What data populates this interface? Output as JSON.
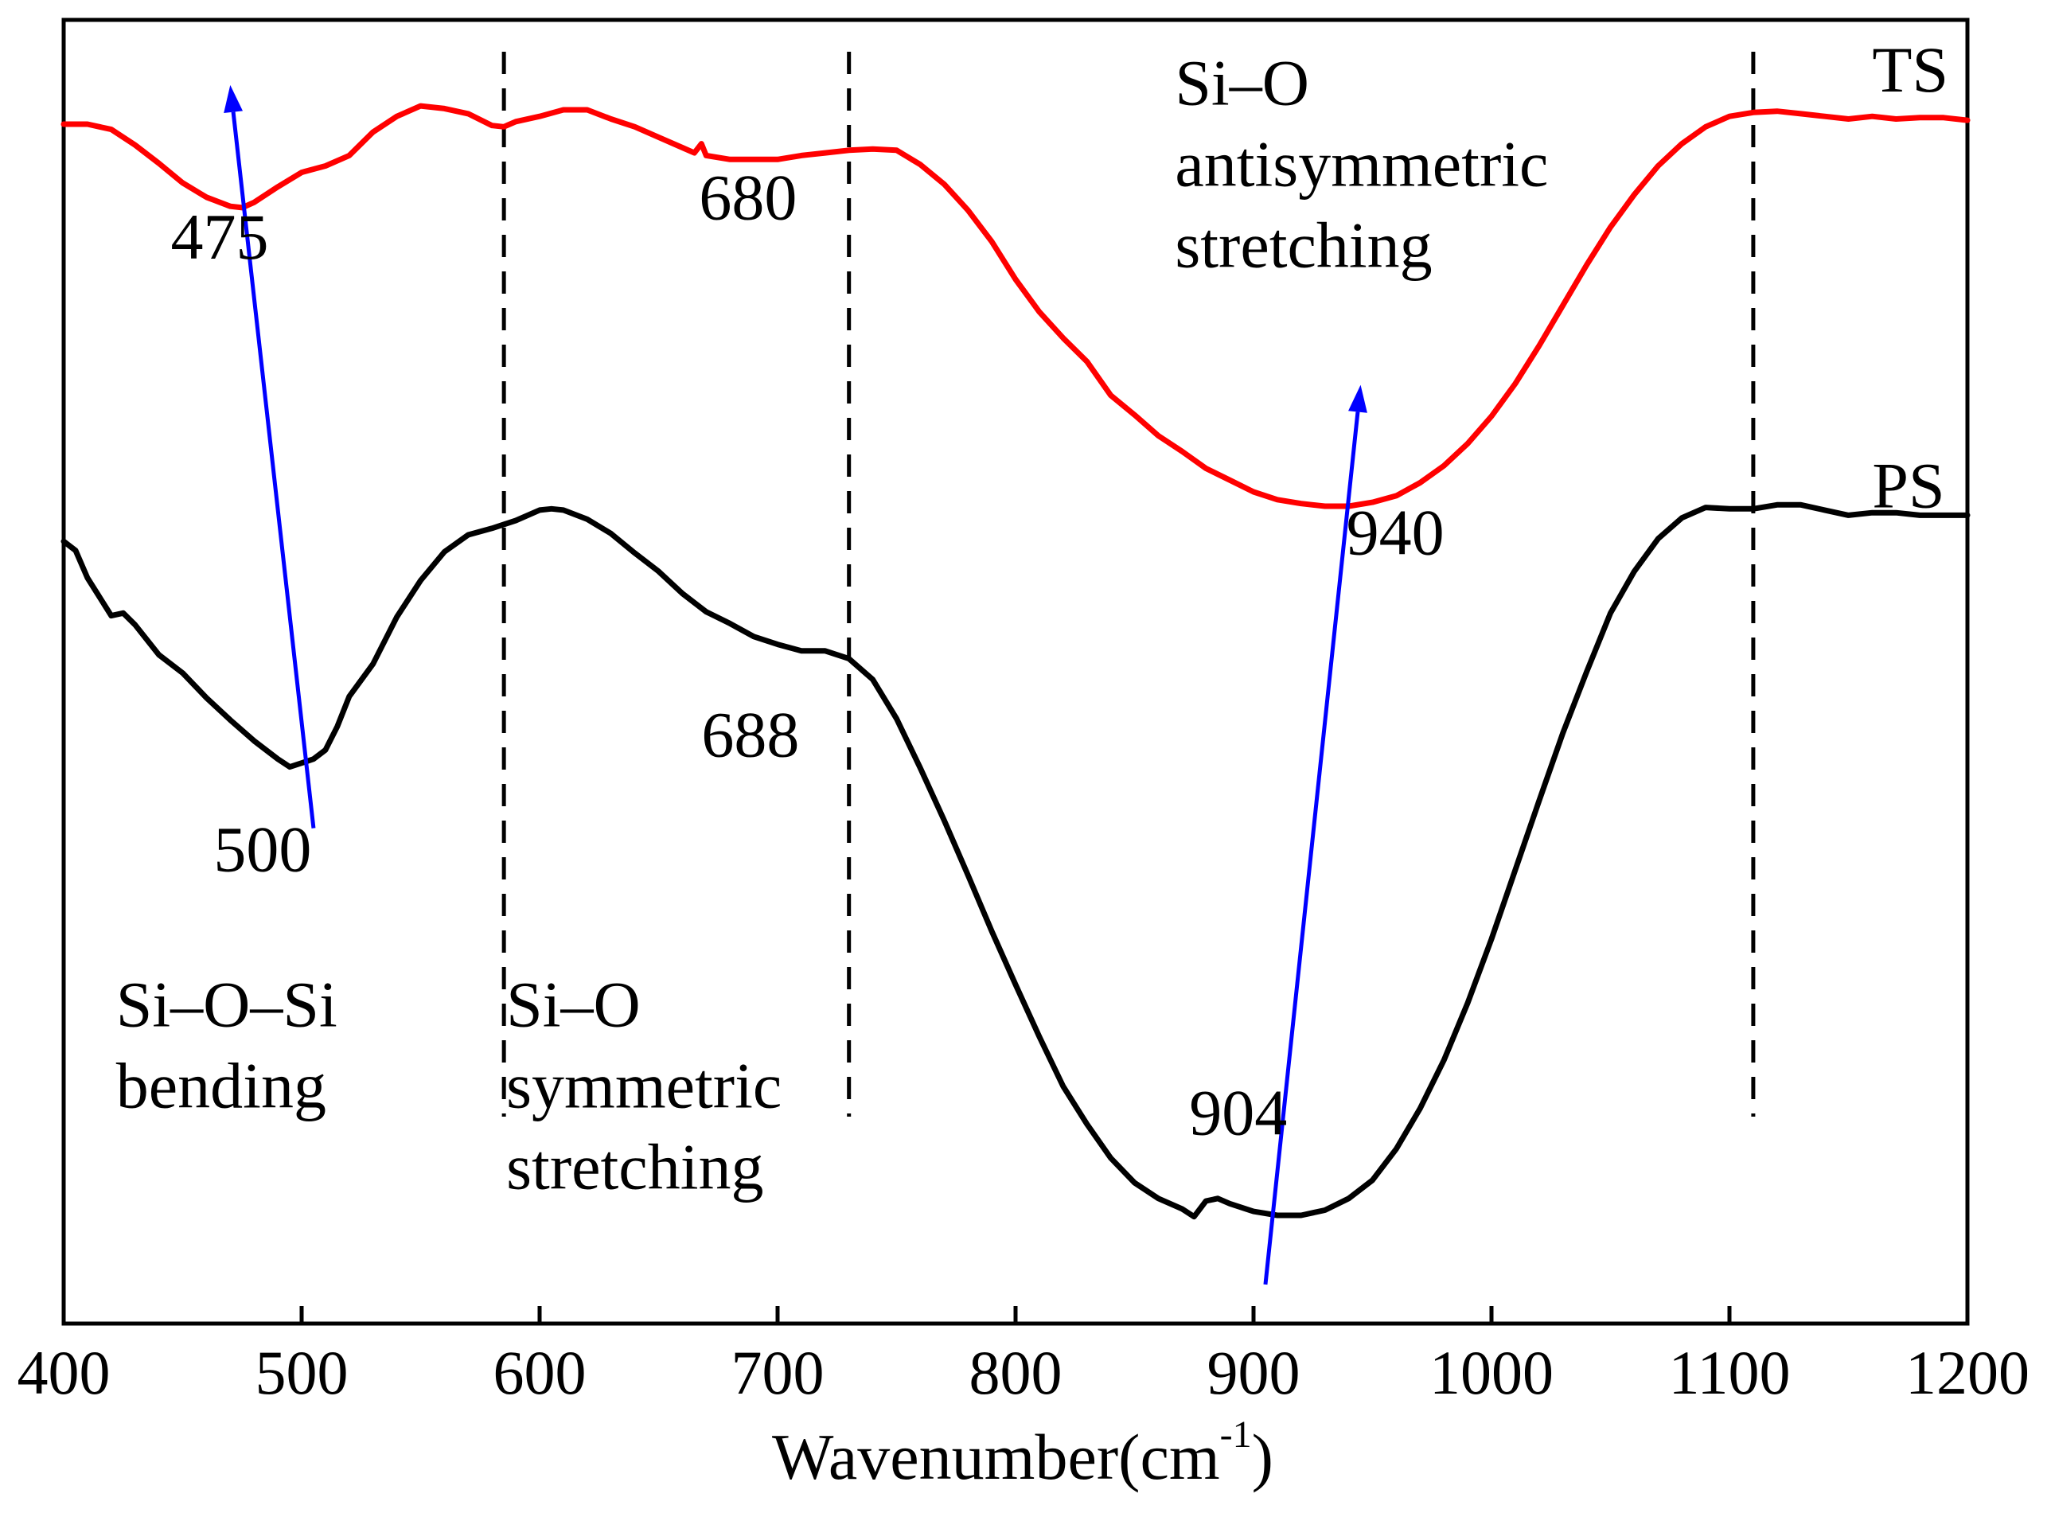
{
  "chart_data": {
    "type": "line",
    "xlabel_main": "Wavenumber(cm",
    "xlabel_sup": "-1",
    "xlabel_close": ")",
    "xlim": [
      400,
      1200
    ],
    "xticks": [
      400,
      500,
      600,
      700,
      800,
      900,
      1000,
      1100,
      1200
    ],
    "ylim": [
      0,
      100
    ],
    "y_axis_ticks": false,
    "series": [
      {
        "name": "TS",
        "color": "#ff0000",
        "points": [
          [
            400,
            92.0
          ],
          [
            410,
            92.0
          ],
          [
            420,
            91.6
          ],
          [
            430,
            90.4
          ],
          [
            440,
            89.0
          ],
          [
            450,
            87.5
          ],
          [
            460,
            86.4
          ],
          [
            470,
            85.7
          ],
          [
            475,
            85.6
          ],
          [
            480,
            86.0
          ],
          [
            490,
            87.2
          ],
          [
            500,
            88.3
          ],
          [
            510,
            88.8
          ],
          [
            520,
            89.6
          ],
          [
            530,
            91.4
          ],
          [
            540,
            92.6
          ],
          [
            550,
            93.4
          ],
          [
            560,
            93.2
          ],
          [
            570,
            92.8
          ],
          [
            580,
            91.9
          ],
          [
            585,
            91.8
          ],
          [
            590,
            92.2
          ],
          [
            600,
            92.6
          ],
          [
            610,
            93.1
          ],
          [
            620,
            93.1
          ],
          [
            630,
            92.4
          ],
          [
            640,
            91.8
          ],
          [
            650,
            91.0
          ],
          [
            660,
            90.2
          ],
          [
            665,
            89.8
          ],
          [
            668,
            90.5
          ],
          [
            670,
            89.6
          ],
          [
            680,
            89.3
          ],
          [
            690,
            89.3
          ],
          [
            700,
            89.3
          ],
          [
            710,
            89.6
          ],
          [
            720,
            89.8
          ],
          [
            730,
            90.0
          ],
          [
            740,
            90.1
          ],
          [
            750,
            90.0
          ],
          [
            760,
            88.9
          ],
          [
            770,
            87.4
          ],
          [
            780,
            85.4
          ],
          [
            790,
            83.0
          ],
          [
            800,
            80.1
          ],
          [
            810,
            77.6
          ],
          [
            820,
            75.6
          ],
          [
            830,
            73.8
          ],
          [
            840,
            71.2
          ],
          [
            850,
            69.7
          ],
          [
            860,
            68.1
          ],
          [
            870,
            66.9
          ],
          [
            880,
            65.6
          ],
          [
            890,
            64.7
          ],
          [
            900,
            63.8
          ],
          [
            910,
            63.2
          ],
          [
            920,
            62.9
          ],
          [
            930,
            62.7
          ],
          [
            940,
            62.7
          ],
          [
            950,
            63.0
          ],
          [
            960,
            63.5
          ],
          [
            970,
            64.5
          ],
          [
            980,
            65.8
          ],
          [
            990,
            67.5
          ],
          [
            1000,
            69.6
          ],
          [
            1010,
            72.1
          ],
          [
            1020,
            75.0
          ],
          [
            1030,
            78.1
          ],
          [
            1040,
            81.2
          ],
          [
            1050,
            84.1
          ],
          [
            1060,
            86.6
          ],
          [
            1070,
            88.8
          ],
          [
            1080,
            90.5
          ],
          [
            1090,
            91.8
          ],
          [
            1100,
            92.6
          ],
          [
            1110,
            92.9
          ],
          [
            1120,
            93.0
          ],
          [
            1130,
            92.8
          ],
          [
            1140,
            92.6
          ],
          [
            1150,
            92.4
          ],
          [
            1160,
            92.6
          ],
          [
            1170,
            92.4
          ],
          [
            1180,
            92.5
          ],
          [
            1190,
            92.5
          ],
          [
            1200,
            92.3
          ]
        ]
      },
      {
        "name": "PS",
        "color": "#000000",
        "points": [
          [
            400,
            60.0
          ],
          [
            405,
            59.3
          ],
          [
            410,
            57.2
          ],
          [
            420,
            54.3
          ],
          [
            425,
            54.5
          ],
          [
            430,
            53.6
          ],
          [
            440,
            51.3
          ],
          [
            450,
            49.9
          ],
          [
            460,
            48.0
          ],
          [
            470,
            46.3
          ],
          [
            480,
            44.7
          ],
          [
            490,
            43.3
          ],
          [
            495,
            42.7
          ],
          [
            500,
            43.0
          ],
          [
            505,
            43.3
          ],
          [
            510,
            44.0
          ],
          [
            515,
            45.8
          ],
          [
            520,
            48.1
          ],
          [
            530,
            50.6
          ],
          [
            540,
            54.2
          ],
          [
            550,
            57.0
          ],
          [
            560,
            59.2
          ],
          [
            570,
            60.5
          ],
          [
            580,
            61.0
          ],
          [
            590,
            61.6
          ],
          [
            600,
            62.4
          ],
          [
            605,
            62.5
          ],
          [
            610,
            62.4
          ],
          [
            620,
            61.7
          ],
          [
            630,
            60.6
          ],
          [
            640,
            59.1
          ],
          [
            650,
            57.7
          ],
          [
            660,
            56.0
          ],
          [
            670,
            54.6
          ],
          [
            680,
            53.7
          ],
          [
            690,
            52.7
          ],
          [
            700,
            52.1
          ],
          [
            710,
            51.6
          ],
          [
            720,
            51.6
          ],
          [
            730,
            51.0
          ],
          [
            740,
            49.4
          ],
          [
            750,
            46.4
          ],
          [
            760,
            42.6
          ],
          [
            770,
            38.6
          ],
          [
            780,
            34.4
          ],
          [
            790,
            30.1
          ],
          [
            800,
            26.0
          ],
          [
            810,
            22.0
          ],
          [
            820,
            18.2
          ],
          [
            830,
            15.3
          ],
          [
            840,
            12.7
          ],
          [
            850,
            10.8
          ],
          [
            860,
            9.6
          ],
          [
            870,
            8.8
          ],
          [
            875,
            8.2
          ],
          [
            880,
            9.4
          ],
          [
            885,
            9.6
          ],
          [
            890,
            9.2
          ],
          [
            900,
            8.6
          ],
          [
            910,
            8.3
          ],
          [
            920,
            8.3
          ],
          [
            930,
            8.7
          ],
          [
            940,
            9.6
          ],
          [
            950,
            11.0
          ],
          [
            960,
            13.4
          ],
          [
            970,
            16.5
          ],
          [
            980,
            20.2
          ],
          [
            990,
            24.6
          ],
          [
            1000,
            29.5
          ],
          [
            1010,
            34.8
          ],
          [
            1020,
            40.1
          ],
          [
            1030,
            45.3
          ],
          [
            1040,
            50.0
          ],
          [
            1050,
            54.5
          ],
          [
            1060,
            57.7
          ],
          [
            1070,
            60.2
          ],
          [
            1080,
            61.8
          ],
          [
            1090,
            62.6
          ],
          [
            1100,
            62.5
          ],
          [
            1110,
            62.5
          ],
          [
            1120,
            62.8
          ],
          [
            1130,
            62.8
          ],
          [
            1140,
            62.4
          ],
          [
            1150,
            62.0
          ],
          [
            1160,
            62.2
          ],
          [
            1170,
            62.2
          ],
          [
            1180,
            62.0
          ],
          [
            1190,
            62.0
          ],
          [
            1200,
            62.0
          ]
        ]
      }
    ],
    "series_labels": [
      {
        "text": "TS",
        "x": 1160,
        "y": 94.5
      },
      {
        "text": "PS",
        "x": 1160,
        "y": 62.6
      }
    ],
    "vlines": [
      585,
      730,
      1110
    ],
    "arrows": [
      {
        "from": [
          505,
          38
        ],
        "to": [
          470,
          95
        ],
        "color": "#0000ff"
      },
      {
        "from": [
          905,
          3
        ],
        "to": [
          945,
          72
        ],
        "color": "#0000ff"
      }
    ],
    "annotations": [
      {
        "lines": [
          "475"
        ],
        "x": 445,
        "y": 81.7
      },
      {
        "lines": [
          "680"
        ],
        "x": 667,
        "y": 84.7
      },
      {
        "lines": [
          "Si–O",
          "antisymmetric",
          "stretching"
        ],
        "x": 867,
        "y": 93.5
      },
      {
        "lines": [
          "940"
        ],
        "x": 939,
        "y": 59.0
      },
      {
        "lines": [
          "688"
        ],
        "x": 668,
        "y": 43.5
      },
      {
        "lines": [
          "500"
        ],
        "x": 463,
        "y": 34.7
      },
      {
        "lines": [
          "Si–O–Si",
          "bending"
        ],
        "x": 422,
        "y": 22.8
      },
      {
        "lines": [
          "Si–O",
          "symmetric",
          "stretching"
        ],
        "x": 586,
        "y": 22.8
      },
      {
        "lines": [
          "904"
        ],
        "x": 873,
        "y": 14.5
      }
    ]
  }
}
